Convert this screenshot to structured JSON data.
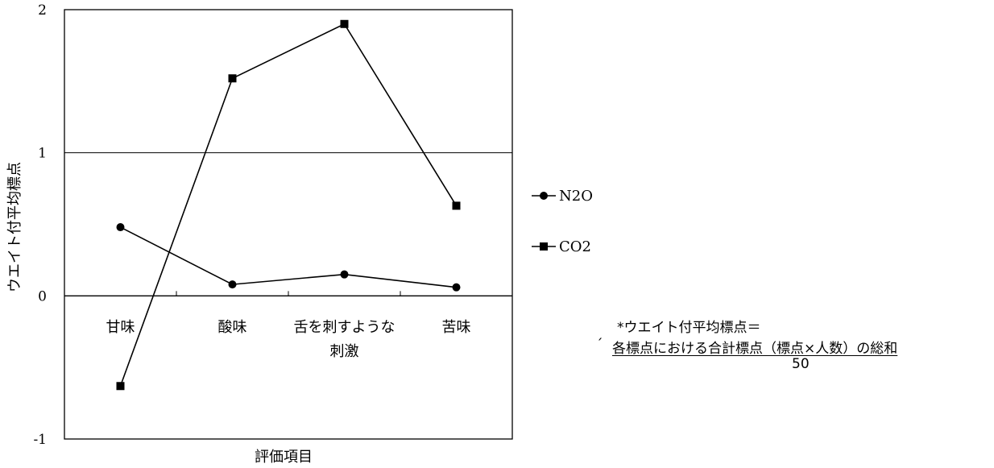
{
  "chart_data": {
    "type": "line",
    "categories": [
      "甘味",
      "酸味",
      "舌を刺すような\n刺激",
      "苦味"
    ],
    "series": [
      {
        "name": "N2O",
        "values": [
          0.48,
          0.08,
          0.15,
          0.06
        ],
        "marker": "circle"
      },
      {
        "name": "CO2",
        "values": [
          -0.63,
          1.52,
          1.9,
          0.63
        ],
        "marker": "square"
      }
    ],
    "xlabel": "評価項目",
    "ylabel": "ウエイト付平均標点",
    "ylim": [
      -1,
      2
    ],
    "yticks": [
      "-1",
      "0",
      "1",
      "2"
    ],
    "gridlines_at": [
      1,
      2
    ],
    "legend_position": "right",
    "colors": {
      "line": "#000000",
      "background": "#ffffff"
    }
  },
  "formula": {
    "title": "*ウエイト付平均標点＝",
    "tick_mark": "ˊ",
    "numerator": "各標点における合計標点（標点×人数）の総和",
    "denominator": "50"
  }
}
